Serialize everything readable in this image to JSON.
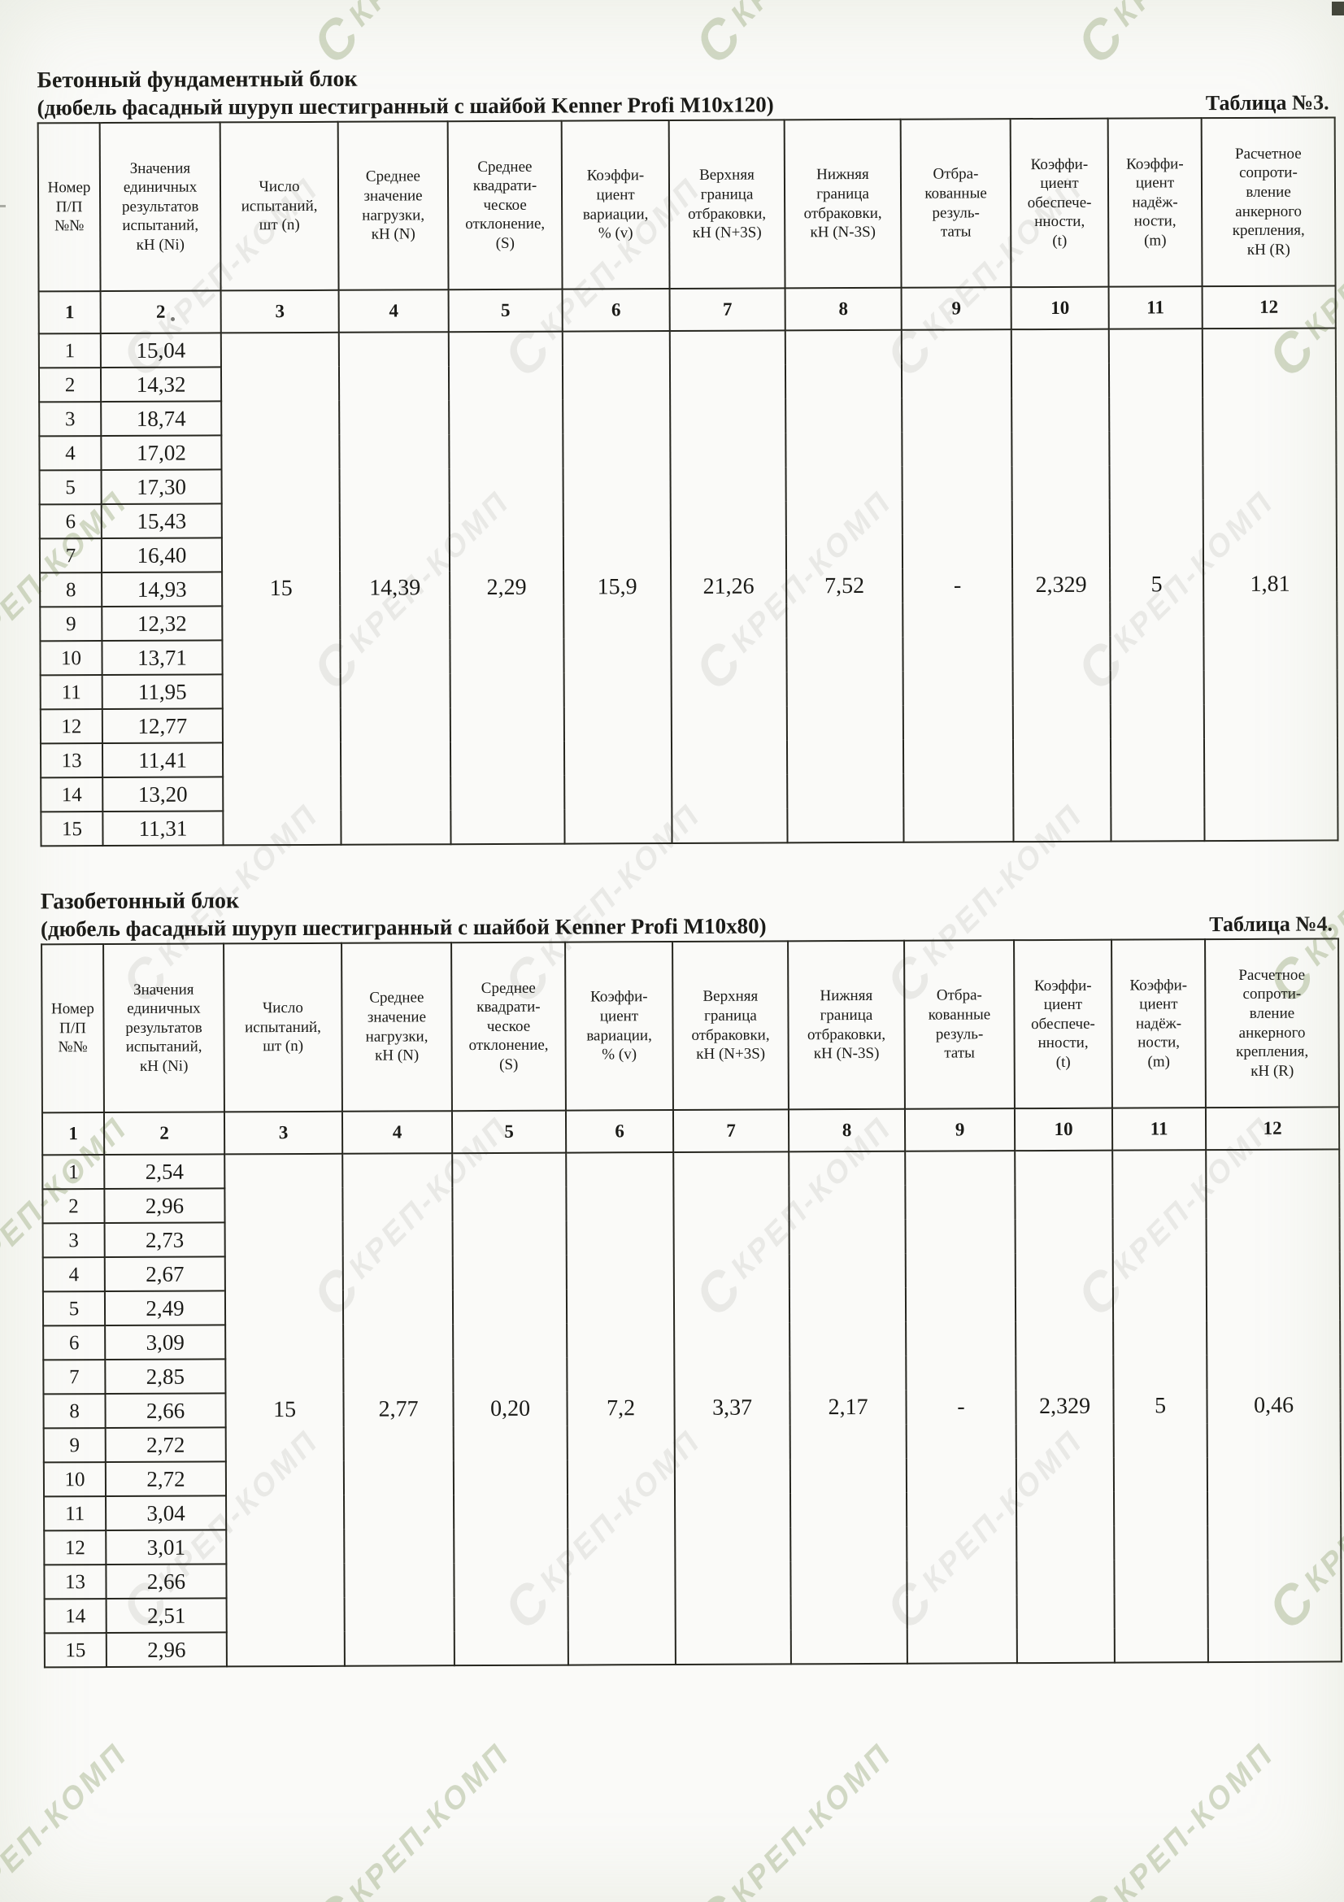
{
  "page": {
    "watermark": {
      "logo": "С",
      "text": "КРЕП-КОМП"
    }
  },
  "sections": [
    {
      "title": "Бетонный фундаментный блок",
      "subtitle": "(дюбель фасадный шуруп шестигранный с шайбой Kenner Profi M10x120)",
      "table_label": "Таблица №3.",
      "table": {
        "headers": [
          "Номер\nП/П\n№№",
          "Значения\nединичных\nрезультатов\nиспытаний,\nкН (Ni)",
          "Число\nиспытаний,\nшт (n)",
          "Среднее\nзначение\nнагрузки,\nкН (N)",
          "Среднее\nквадрати-\nческое\nотклонение,\n(S)",
          "Коэффи-\nциент\nвариации,\n% (v)",
          "Верхняя\nграница\nотбраковки,\nкН (N+3S)",
          "Нижняя\nграница\nотбраковки,\nкН (N-3S)",
          "Отбра-\nкованные\nрезуль-\nтаты",
          "Коэффи-\nциент\nобеспече-\nнности,\n(t)",
          "Коэффи-\nциент\nнадёж-\nности,\n(m)",
          "Расчетное\nсопроти-\nвление\nанкерного\nкрепления,\nкН (R)"
        ],
        "column_numbers": [
          "1",
          "2",
          "3",
          "4",
          "5",
          "6",
          "7",
          "8",
          "9",
          "10",
          "11",
          "12"
        ],
        "rows": [
          {
            "num": "1",
            "value": "15,04"
          },
          {
            "num": "2",
            "value": "14,32"
          },
          {
            "num": "3",
            "value": "18,74"
          },
          {
            "num": "4",
            "value": "17,02"
          },
          {
            "num": "5",
            "value": "17,30"
          },
          {
            "num": "6",
            "value": "15,43"
          },
          {
            "num": "7",
            "value": "16,40"
          },
          {
            "num": "8",
            "value": "14,93"
          },
          {
            "num": "9",
            "value": "12,32"
          },
          {
            "num": "10",
            "value": "13,71"
          },
          {
            "num": "11",
            "value": "11,95"
          },
          {
            "num": "12",
            "value": "12,77"
          },
          {
            "num": "13",
            "value": "11,41"
          },
          {
            "num": "14",
            "value": "13,20"
          },
          {
            "num": "15",
            "value": "11,31"
          }
        ],
        "summary": [
          "15",
          "14,39",
          "2,29",
          "15,9",
          "21,26",
          "7,52",
          "-",
          "2,329",
          "5",
          "1,81"
        ]
      }
    },
    {
      "title": "Газобетонный блок",
      "subtitle": "(дюбель фасадный шуруп шестигранный с шайбой Kenner Profi M10x80)",
      "table_label": "Таблица №4.",
      "table": {
        "headers": [
          "Номер\nП/П\n№№",
          "Значения\nединичных\nрезультатов\nиспытаний,\nкН (Ni)",
          "Число\nиспытаний,\nшт (n)",
          "Среднее\nзначение\nнагрузки,\nкН (N)",
          "Среднее\nквадрати-\nческое\nотклонение,\n(S)",
          "Коэффи-\nциент\nвариации,\n% (v)",
          "Верхняя\nграница\nотбраковки,\nкН (N+3S)",
          "Нижняя\nграница\nотбраковки,\nкН (N-3S)",
          "Отбра-\nкованные\nрезуль-\nтаты",
          "Коэффи-\nциент\nобеспече-\nнности,\n(t)",
          "Коэффи-\nциент\nнадёж-\nности,\n(m)",
          "Расчетное\nсопроти-\nвление\nанкерного\nкрепления,\nкН (R)"
        ],
        "column_numbers": [
          "1",
          "2",
          "3",
          "4",
          "5",
          "6",
          "7",
          "8",
          "9",
          "10",
          "11",
          "12"
        ],
        "rows": [
          {
            "num": "1",
            "value": "2,54"
          },
          {
            "num": "2",
            "value": "2,96"
          },
          {
            "num": "3",
            "value": "2,73"
          },
          {
            "num": "4",
            "value": "2,67"
          },
          {
            "num": "5",
            "value": "2,49"
          },
          {
            "num": "6",
            "value": "3,09"
          },
          {
            "num": "7",
            "value": "2,85"
          },
          {
            "num": "8",
            "value": "2,66"
          },
          {
            "num": "9",
            "value": "2,72"
          },
          {
            "num": "10",
            "value": "2,72"
          },
          {
            "num": "11",
            "value": "3,04"
          },
          {
            "num": "12",
            "value": "3,01"
          },
          {
            "num": "13",
            "value": "2,66"
          },
          {
            "num": "14",
            "value": "2,51"
          },
          {
            "num": "15",
            "value": "2,96"
          }
        ],
        "summary": [
          "15",
          "2,77",
          "0,20",
          "7,2",
          "3,37",
          "2,17",
          "-",
          "2,329",
          "5",
          "0,46"
        ]
      }
    }
  ]
}
